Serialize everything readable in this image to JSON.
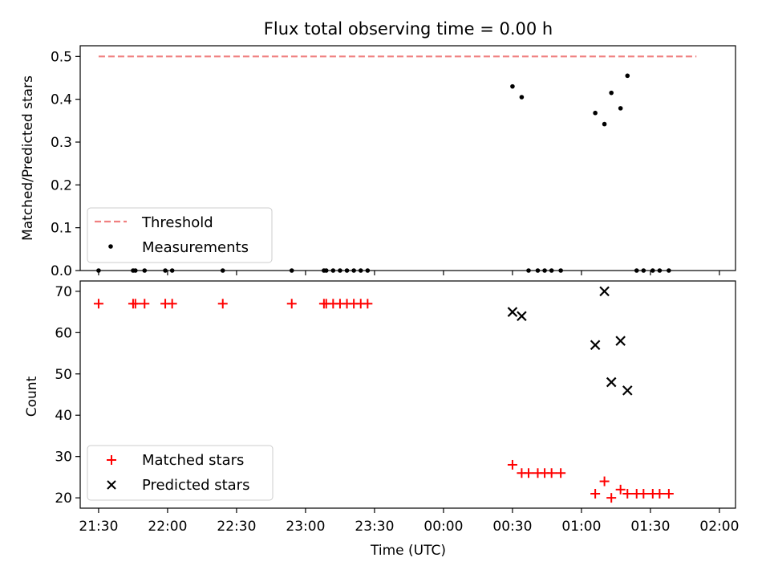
{
  "chart_data": [
    {
      "type": "scatter",
      "title": "Flux total observing time = 0.00 h",
      "ylabel": "Matched/Predicted stars",
      "ylim": [
        0,
        0.525
      ],
      "yticks": [
        0.0,
        0.1,
        0.2,
        0.3,
        0.4,
        0.5
      ],
      "ytick_labels": [
        "0.0",
        "0.1",
        "0.2",
        "0.3",
        "0.4",
        "0.5"
      ],
      "xlim": [
        "21:22",
        "02:07"
      ],
      "legend": {
        "placement": "lower-left",
        "entries": [
          "Threshold",
          "Measurements"
        ]
      },
      "threshold": {
        "name": "Threshold",
        "value": 0.5,
        "x_range": [
          "21:30",
          "01:50"
        ],
        "color": "#f08080",
        "style": "dashed"
      },
      "series": [
        {
          "name": "Measurements",
          "color": "#000000",
          "x": [
            "21:30",
            "21:45",
            "21:46",
            "21:50",
            "21:59",
            "22:02",
            "22:24",
            "22:54",
            "23:08",
            "23:09",
            "23:12",
            "23:15",
            "23:18",
            "23:21",
            "23:24",
            "23:27",
            "00:30",
            "00:34",
            "00:37",
            "00:41",
            "00:44",
            "00:47",
            "00:51",
            "01:06",
            "01:10",
            "01:13",
            "01:17",
            "01:20",
            "01:24",
            "01:27",
            "01:31",
            "01:34",
            "01:38"
          ],
          "y": [
            0,
            0,
            0,
            0,
            0,
            0,
            0,
            0,
            0,
            0,
            0,
            0,
            0,
            0,
            0,
            0,
            0.43,
            0.405,
            0,
            0,
            0,
            0,
            0,
            0.368,
            0.342,
            0.415,
            0.379,
            0.455,
            0,
            0,
            0,
            0,
            0
          ]
        }
      ]
    },
    {
      "type": "scatter",
      "xlabel": "Time (UTC)",
      "ylabel": "Count",
      "ylim": [
        17.5,
        72.5
      ],
      "yticks": [
        20,
        30,
        40,
        50,
        60,
        70
      ],
      "ytick_labels": [
        "20",
        "30",
        "40",
        "50",
        "60",
        "70"
      ],
      "xlim": [
        "21:22",
        "02:07"
      ],
      "xticks": [
        "21:30",
        "22:00",
        "22:30",
        "23:00",
        "23:30",
        "00:00",
        "00:30",
        "01:00",
        "01:30",
        "02:00"
      ],
      "xtick_labels": [
        "21:30",
        "22:00",
        "22:30",
        "23:00",
        "23:30",
        "00:00",
        "00:30",
        "01:00",
        "01:30",
        "02:00"
      ],
      "legend": {
        "placement": "lower-left",
        "entries": [
          "Matched stars",
          "Predicted stars"
        ]
      },
      "series": [
        {
          "name": "Matched stars",
          "marker": "plus",
          "color": "#ff0000",
          "x": [
            "21:30",
            "21:45",
            "21:46",
            "21:50",
            "21:59",
            "22:02",
            "22:24",
            "22:54",
            "23:08",
            "23:09",
            "23:12",
            "23:15",
            "23:18",
            "23:21",
            "23:24",
            "23:27",
            "00:30",
            "00:34",
            "00:37",
            "00:41",
            "00:44",
            "00:47",
            "00:51",
            "01:06",
            "01:10",
            "01:13",
            "01:17",
            "01:20",
            "01:24",
            "01:27",
            "01:31",
            "01:34",
            "01:38"
          ],
          "y": [
            67,
            67,
            67,
            67,
            67,
            67,
            67,
            67,
            67,
            67,
            67,
            67,
            67,
            67,
            67,
            67,
            28,
            26,
            26,
            26,
            26,
            26,
            26,
            21,
            24,
            20,
            22,
            21,
            21,
            21,
            21,
            21,
            21
          ]
        },
        {
          "name": "Predicted stars",
          "marker": "x",
          "color": "#000000",
          "x": [
            "00:30",
            "00:34",
            "01:06",
            "01:10",
            "01:13",
            "01:17",
            "01:20"
          ],
          "y": [
            65,
            64,
            57,
            70,
            48,
            58,
            46
          ]
        }
      ]
    }
  ]
}
